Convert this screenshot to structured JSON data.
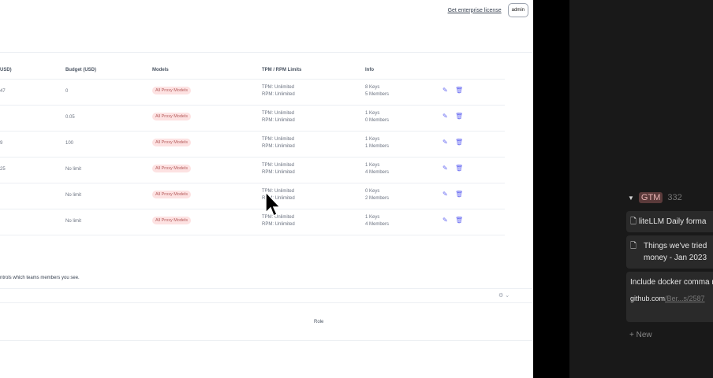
{
  "header": {
    "license_link": "Get enterprise license",
    "user_badge": "admin"
  },
  "table": {
    "columns": [
      "USD)",
      "Budget (USD)",
      "Models",
      "TPM / RPM Limits",
      "Info"
    ],
    "rows": [
      {
        "spend": "47",
        "budget": "0",
        "models": "All Proxy Models",
        "tpm": "TPM: Unlimited",
        "rpm": "RPM: Unlimited",
        "keys": "8 Keys",
        "members": "5 Members"
      },
      {
        "spend": "",
        "budget": "0.05",
        "models": "All Proxy Models",
        "tpm": "TPM: Unlimited",
        "rpm": "RPM: Unlimited",
        "keys": "1 Keys",
        "members": "0 Members"
      },
      {
        "spend": "9",
        "budget": "100",
        "models": "All Proxy Models",
        "tpm": "TPM: Unlimited",
        "rpm": "RPM: Unlimited",
        "keys": "1 Keys",
        "members": "1 Members"
      },
      {
        "spend": "25",
        "budget": "No limit",
        "models": "All Proxy Models",
        "tpm": "TPM: Unlimited",
        "rpm": "RPM: Unlimited",
        "keys": "1 Keys",
        "members": "4 Members"
      },
      {
        "spend": "",
        "budget": "No limit",
        "models": "All Proxy Models",
        "tpm": "TPM: Unlimited",
        "rpm": "RPM: Unlimited",
        "keys": "0 Keys",
        "members": "2 Members"
      },
      {
        "spend": "",
        "budget": "No limit",
        "models": "All Proxy Models",
        "tpm": "TPM: Unlimited",
        "rpm": "RPM: Unlimited",
        "keys": "1 Keys",
        "members": "4 Members"
      }
    ]
  },
  "members": {
    "description": "ntrols which teams members you see.",
    "role_header": "Role"
  },
  "notion": {
    "group_tag": "GTM",
    "group_count": "332",
    "cards": [
      "liteLLM Daily forma",
      "Things we've tried money - Jan 2023"
    ],
    "card3": {
      "title": "Include docker comma notes",
      "link_host": "github.com",
      "link_path": "/Ber...s/2587"
    },
    "new_label": "New"
  },
  "colors": {
    "accent": "#6366f1",
    "pill_bg": "#fde2e2",
    "notion_bg": "#191919"
  }
}
